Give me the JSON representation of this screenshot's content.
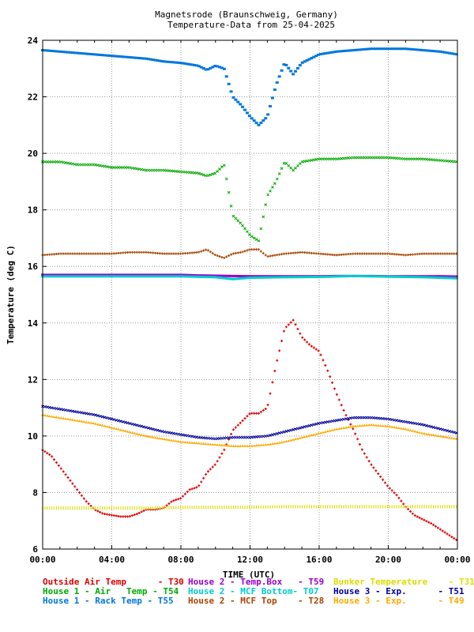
{
  "chart_data": {
    "type": "scatter",
    "title": "Magnetsrode (Braunschweig, Germany)",
    "subtitle": "Temperature-Data from 25-04-2025",
    "xlabel": "TIME (UTC)",
    "ylabel": "Temperature (deg C)",
    "xlim": [
      0,
      24
    ],
    "ylim": [
      6,
      24
    ],
    "x_tick_labels": [
      "00:00",
      "04:00",
      "08:00",
      "12:00",
      "16:00",
      "20:00",
      "00:00"
    ],
    "y_ticks": [
      6,
      8,
      10,
      12,
      14,
      16,
      18,
      20,
      22,
      24
    ],
    "grid": true,
    "legend_position": "bottom",
    "series": [
      {
        "legend": "Outside Air Temp      - T30",
        "color": "#dd0000",
        "marker": "+",
        "points": [
          [
            0,
            9.5
          ],
          [
            0.5,
            9.3
          ],
          [
            1,
            8.9
          ],
          [
            1.5,
            8.5
          ],
          [
            2,
            8.1
          ],
          [
            2.5,
            7.7
          ],
          [
            3,
            7.4
          ],
          [
            3.5,
            7.25
          ],
          [
            4,
            7.2
          ],
          [
            4.5,
            7.15
          ],
          [
            5,
            7.15
          ],
          [
            5.5,
            7.25
          ],
          [
            6,
            7.4
          ],
          [
            6.5,
            7.4
          ],
          [
            7,
            7.45
          ],
          [
            7.5,
            7.7
          ],
          [
            8,
            7.8
          ],
          [
            8.5,
            8.1
          ],
          [
            9,
            8.2
          ],
          [
            9.5,
            8.7
          ],
          [
            10,
            9.0
          ],
          [
            10.5,
            9.5
          ],
          [
            11,
            10.2
          ],
          [
            11.5,
            10.5
          ],
          [
            12,
            10.8
          ],
          [
            12.5,
            10.8
          ],
          [
            13,
            11.0
          ],
          [
            13.5,
            12.5
          ],
          [
            14,
            13.8
          ],
          [
            14.5,
            14.1
          ],
          [
            15,
            13.5
          ],
          [
            15.5,
            13.2
          ],
          [
            16,
            13.0
          ],
          [
            16.5,
            12.3
          ],
          [
            17,
            11.5
          ],
          [
            17.5,
            10.8
          ],
          [
            18,
            10.2
          ],
          [
            18.5,
            9.5
          ],
          [
            19,
            9.0
          ],
          [
            19.5,
            8.6
          ],
          [
            20,
            8.2
          ],
          [
            20.5,
            7.9
          ],
          [
            21,
            7.5
          ],
          [
            21.5,
            7.2
          ],
          [
            22,
            7.05
          ],
          [
            22.5,
            6.9
          ],
          [
            23,
            6.7
          ],
          [
            23.5,
            6.5
          ],
          [
            24,
            6.3
          ]
        ]
      },
      {
        "legend": "House 2 - Temp.Box   - T59",
        "color": "#9900cc",
        "marker": "-",
        "points": [
          [
            0,
            15.7
          ],
          [
            1,
            15.7
          ],
          [
            2,
            15.7
          ],
          [
            3,
            15.7
          ],
          [
            4,
            15.7
          ],
          [
            5,
            15.7
          ],
          [
            6,
            15.7
          ],
          [
            7,
            15.7
          ],
          [
            8,
            15.7
          ],
          [
            9,
            15.68
          ],
          [
            10,
            15.67
          ],
          [
            11,
            15.66
          ],
          [
            12,
            15.65
          ],
          [
            13,
            15.65
          ],
          [
            14,
            15.65
          ],
          [
            15,
            15.65
          ],
          [
            16,
            15.65
          ],
          [
            17,
            15.66
          ],
          [
            18,
            15.66
          ],
          [
            19,
            15.66
          ],
          [
            20,
            15.65
          ],
          [
            21,
            15.65
          ],
          [
            22,
            15.65
          ],
          [
            23,
            15.65
          ],
          [
            24,
            15.64
          ]
        ]
      },
      {
        "legend": "Bunker Temperature    - T31",
        "color": "#dddd00",
        "marker": "|",
        "points": [
          [
            0,
            7.45
          ],
          [
            2,
            7.45
          ],
          [
            4,
            7.45
          ],
          [
            6,
            7.45
          ],
          [
            8,
            7.47
          ],
          [
            10,
            7.48
          ],
          [
            12,
            7.48
          ],
          [
            14,
            7.5
          ],
          [
            16,
            7.5
          ],
          [
            18,
            7.5
          ],
          [
            20,
            7.5
          ],
          [
            22,
            7.5
          ],
          [
            24,
            7.5
          ]
        ]
      },
      {
        "legend": "House 1 - Air   Temp - T54",
        "color": "#00aa00",
        "marker": "x",
        "points": [
          [
            0,
            19.7
          ],
          [
            1,
            19.7
          ],
          [
            2,
            19.6
          ],
          [
            3,
            19.6
          ],
          [
            4,
            19.5
          ],
          [
            5,
            19.5
          ],
          [
            6,
            19.4
          ],
          [
            7,
            19.4
          ],
          [
            8,
            19.35
          ],
          [
            9,
            19.3
          ],
          [
            9.5,
            19.2
          ],
          [
            10,
            19.3
          ],
          [
            10.5,
            19.6
          ],
          [
            11,
            17.8
          ],
          [
            11.5,
            17.5
          ],
          [
            12,
            17.1
          ],
          [
            12.5,
            16.9
          ],
          [
            13,
            18.5
          ],
          [
            13.5,
            19.0
          ],
          [
            14,
            19.7
          ],
          [
            14.5,
            19.4
          ],
          [
            15,
            19.7
          ],
          [
            16,
            19.8
          ],
          [
            17,
            19.8
          ],
          [
            18,
            19.85
          ],
          [
            19,
            19.85
          ],
          [
            20,
            19.85
          ],
          [
            21,
            19.8
          ],
          [
            22,
            19.8
          ],
          [
            23,
            19.75
          ],
          [
            24,
            19.7
          ]
        ]
      },
      {
        "legend": "House 2 - MCF Bottom- T07",
        "color": "#00cccc",
        "marker": "-",
        "points": [
          [
            0,
            15.65
          ],
          [
            2,
            15.65
          ],
          [
            4,
            15.65
          ],
          [
            6,
            15.65
          ],
          [
            8,
            15.65
          ],
          [
            10,
            15.62
          ],
          [
            11,
            15.55
          ],
          [
            12,
            15.6
          ],
          [
            14,
            15.62
          ],
          [
            16,
            15.63
          ],
          [
            18,
            15.66
          ],
          [
            20,
            15.64
          ],
          [
            22,
            15.62
          ],
          [
            24,
            15.58
          ]
        ]
      },
      {
        "legend": "House 3 - Exp.      - T51",
        "color": "#000099",
        "marker": "x",
        "points": [
          [
            0,
            11.05
          ],
          [
            1,
            10.95
          ],
          [
            2,
            10.85
          ],
          [
            3,
            10.75
          ],
          [
            4,
            10.6
          ],
          [
            5,
            10.45
          ],
          [
            6,
            10.3
          ],
          [
            7,
            10.15
          ],
          [
            8,
            10.05
          ],
          [
            9,
            9.95
          ],
          [
            10,
            9.9
          ],
          [
            11,
            9.95
          ],
          [
            12,
            9.95
          ],
          [
            13,
            10.0
          ],
          [
            14,
            10.15
          ],
          [
            15,
            10.3
          ],
          [
            16,
            10.45
          ],
          [
            17,
            10.55
          ],
          [
            18,
            10.65
          ],
          [
            19,
            10.65
          ],
          [
            20,
            10.6
          ],
          [
            21,
            10.5
          ],
          [
            22,
            10.4
          ],
          [
            23,
            10.25
          ],
          [
            24,
            10.1
          ]
        ]
      },
      {
        "legend": "House 1 - Rack Temp - T55",
        "color": "#0077dd",
        "marker": "-",
        "points": [
          [
            0,
            23.65
          ],
          [
            1,
            23.6
          ],
          [
            2,
            23.55
          ],
          [
            3,
            23.5
          ],
          [
            4,
            23.45
          ],
          [
            5,
            23.4
          ],
          [
            6,
            23.35
          ],
          [
            7,
            23.25
          ],
          [
            8,
            23.2
          ],
          [
            9,
            23.1
          ],
          [
            9.5,
            22.95
          ],
          [
            10,
            23.1
          ],
          [
            10.5,
            23.0
          ],
          [
            11,
            22.0
          ],
          [
            11.5,
            21.7
          ],
          [
            12,
            21.3
          ],
          [
            12.5,
            21.0
          ],
          [
            13,
            21.3
          ],
          [
            13.5,
            22.4
          ],
          [
            14,
            23.2
          ],
          [
            14.5,
            22.8
          ],
          [
            15,
            23.2
          ],
          [
            16,
            23.5
          ],
          [
            17,
            23.6
          ],
          [
            18,
            23.65
          ],
          [
            19,
            23.7
          ],
          [
            20,
            23.7
          ],
          [
            21,
            23.7
          ],
          [
            22,
            23.65
          ],
          [
            23,
            23.6
          ],
          [
            24,
            23.5
          ]
        ]
      },
      {
        "legend": "House 2 - MCF Top    - T28",
        "color": "#aa4400",
        "marker": "+",
        "points": [
          [
            0,
            16.4
          ],
          [
            1,
            16.45
          ],
          [
            2,
            16.45
          ],
          [
            3,
            16.45
          ],
          [
            4,
            16.45
          ],
          [
            5,
            16.5
          ],
          [
            6,
            16.5
          ],
          [
            7,
            16.45
          ],
          [
            8,
            16.45
          ],
          [
            9,
            16.5
          ],
          [
            9.5,
            16.6
          ],
          [
            10,
            16.4
          ],
          [
            10.5,
            16.3
          ],
          [
            11,
            16.45
          ],
          [
            11.5,
            16.5
          ],
          [
            12,
            16.6
          ],
          [
            12.5,
            16.6
          ],
          [
            13,
            16.35
          ],
          [
            14,
            16.45
          ],
          [
            15,
            16.5
          ],
          [
            16,
            16.45
          ],
          [
            17,
            16.4
          ],
          [
            18,
            16.45
          ],
          [
            19,
            16.45
          ],
          [
            20,
            16.45
          ],
          [
            21,
            16.4
          ],
          [
            22,
            16.45
          ],
          [
            23,
            16.45
          ],
          [
            24,
            16.45
          ]
        ]
      },
      {
        "legend": "House 3 - Exp.      - T49",
        "color": "#ffaa00",
        "marker": "^",
        "points": [
          [
            0,
            10.75
          ],
          [
            1,
            10.65
          ],
          [
            2,
            10.55
          ],
          [
            3,
            10.45
          ],
          [
            4,
            10.3
          ],
          [
            5,
            10.15
          ],
          [
            6,
            10.0
          ],
          [
            7,
            9.9
          ],
          [
            8,
            9.8
          ],
          [
            9,
            9.75
          ],
          [
            10,
            9.7
          ],
          [
            11,
            9.65
          ],
          [
            12,
            9.65
          ],
          [
            13,
            9.7
          ],
          [
            14,
            9.8
          ],
          [
            15,
            9.95
          ],
          [
            16,
            10.1
          ],
          [
            17,
            10.25
          ],
          [
            18,
            10.35
          ],
          [
            19,
            10.4
          ],
          [
            20,
            10.35
          ],
          [
            21,
            10.25
          ],
          [
            22,
            10.1
          ],
          [
            23,
            10.0
          ],
          [
            24,
            9.9
          ]
        ]
      }
    ]
  }
}
